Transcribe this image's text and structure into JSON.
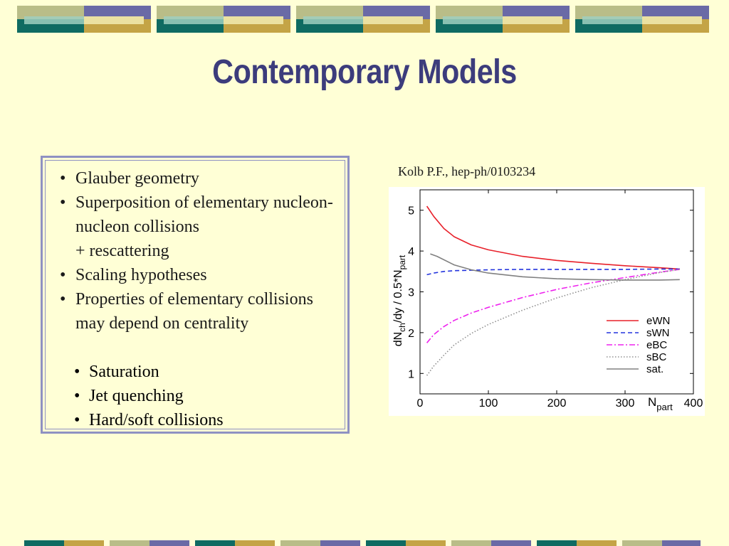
{
  "slide": {
    "title": "Contemporary Models",
    "bullets": [
      {
        "text": "Glauber geometry"
      },
      {
        "text": "Superposition of  elementary nucleon-nucleon collisions",
        "continuation": "+ rescattering"
      },
      {
        "text": "Scaling hypotheses"
      },
      {
        "text": "Properties of elementary collisions may depend on centrality",
        "sub": [
          "Saturation",
          "Jet quenching",
          "Hard/soft collisions"
        ]
      }
    ],
    "citation": "Kolb P.F., hep-ph/0103234"
  },
  "colors": {
    "background": "#ffffd6",
    "title": "#3c3c7c",
    "box_border": "#8f91c2",
    "band_olive": "#b9bd88",
    "band_purple": "#6a6aa6",
    "band_teal": "#0f6b62",
    "band_gold": "#c4a446"
  },
  "chart_data": {
    "type": "line",
    "xlabel": "N",
    "xlabel_sub": "part",
    "ylabel": "dN",
    "ylabel_sub": "ch",
    "ylabel_mid": "/dy / 0.5*N",
    "ylabel_sub2": "part",
    "xlim": [
      0,
      400
    ],
    "ylim": [
      0.5,
      5.5
    ],
    "xticks": [
      0,
      100,
      200,
      300,
      400
    ],
    "yticks": [
      1,
      2,
      3,
      4,
      5
    ],
    "legend_position": "bottom-right",
    "grid": false,
    "series": [
      {
        "name": "eWN",
        "color": "#e8202a",
        "dash": "",
        "x": [
          10,
          20,
          35,
          50,
          75,
          100,
          150,
          200,
          250,
          300,
          350,
          380
        ],
        "y": [
          5.1,
          4.85,
          4.55,
          4.35,
          4.15,
          4.03,
          3.87,
          3.77,
          3.7,
          3.64,
          3.59,
          3.56
        ]
      },
      {
        "name": "sWN",
        "color": "#2233dd",
        "dash": "6,4",
        "x": [
          10,
          20,
          35,
          50,
          75,
          100,
          150,
          200,
          250,
          300,
          350,
          380
        ],
        "y": [
          3.42,
          3.46,
          3.5,
          3.52,
          3.53,
          3.54,
          3.55,
          3.55,
          3.55,
          3.55,
          3.56,
          3.56
        ]
      },
      {
        "name": "eBC",
        "color": "#ee22ee",
        "dash": "8,3,2,3",
        "x": [
          10,
          20,
          35,
          50,
          75,
          100,
          150,
          200,
          250,
          300,
          350,
          380
        ],
        "y": [
          1.75,
          1.95,
          2.15,
          2.3,
          2.48,
          2.62,
          2.86,
          3.06,
          3.22,
          3.35,
          3.48,
          3.55
        ]
      },
      {
        "name": "sBC",
        "color": "#909090",
        "dash": "1.5,2.5",
        "x": [
          10,
          20,
          35,
          50,
          75,
          100,
          150,
          200,
          250,
          300,
          350,
          380
        ],
        "y": [
          0.95,
          1.18,
          1.45,
          1.7,
          1.98,
          2.2,
          2.55,
          2.85,
          3.1,
          3.3,
          3.47,
          3.55
        ]
      },
      {
        "name": "sat.",
        "color": "#808080",
        "dash": "",
        "x": [
          15,
          25,
          50,
          75,
          100,
          150,
          200,
          250,
          300,
          350,
          380
        ],
        "y": [
          3.93,
          3.87,
          3.66,
          3.54,
          3.46,
          3.37,
          3.32,
          3.3,
          3.29,
          3.29,
          3.3
        ]
      }
    ]
  }
}
